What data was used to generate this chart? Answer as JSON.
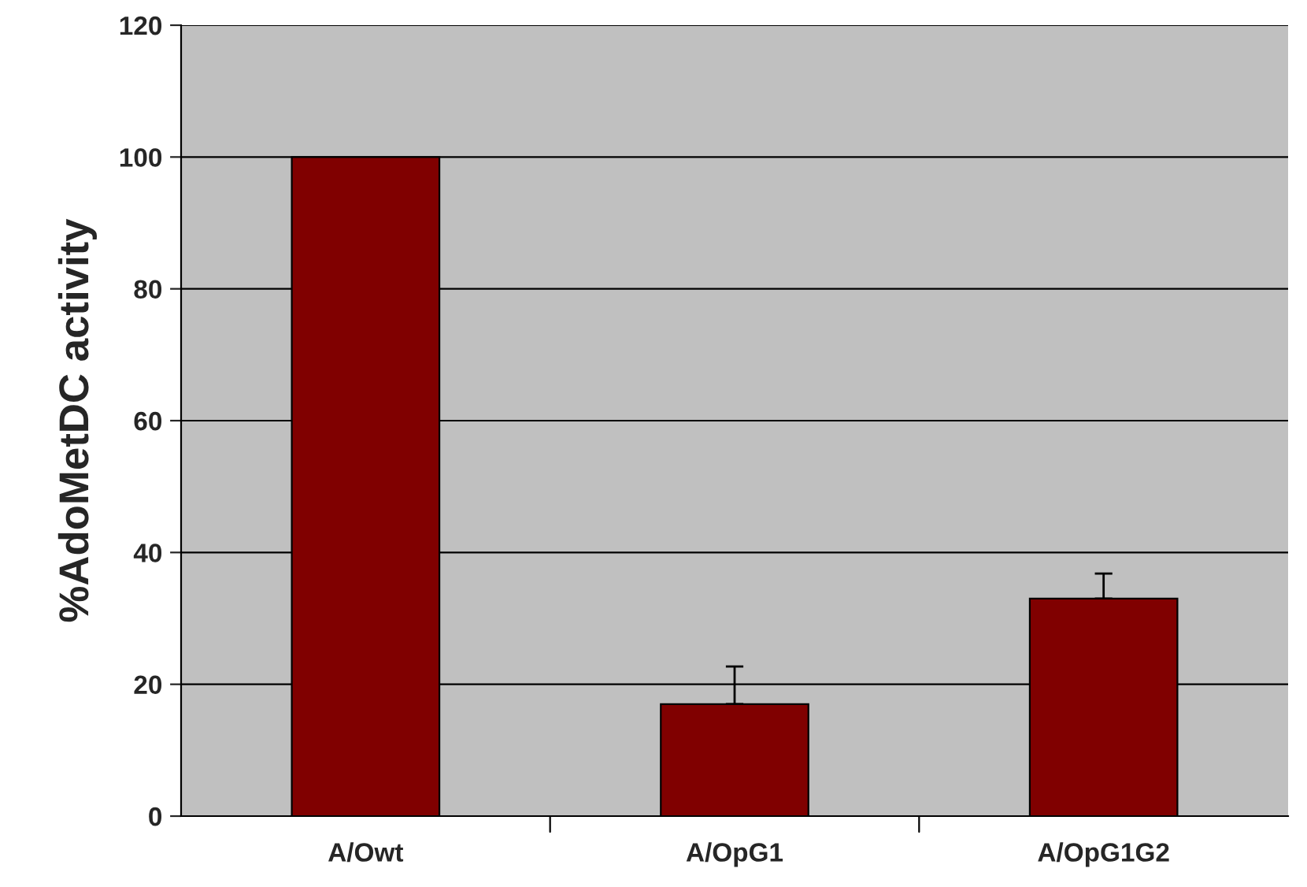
{
  "chart_data": {
    "type": "bar",
    "ylabel": "%AdoMetDC activity",
    "categories": [
      "A/Owt",
      "A/OpG1",
      "A/OpG1G2"
    ],
    "values": [
      100,
      17,
      33
    ],
    "errors": [
      null,
      [
        17,
        22.7
      ],
      [
        33,
        36.8
      ]
    ],
    "color": "#800000",
    "ylim": [
      0,
      120
    ],
    "yticks": [
      0,
      20,
      40,
      60,
      80,
      100,
      120
    ],
    "grid": "y"
  }
}
